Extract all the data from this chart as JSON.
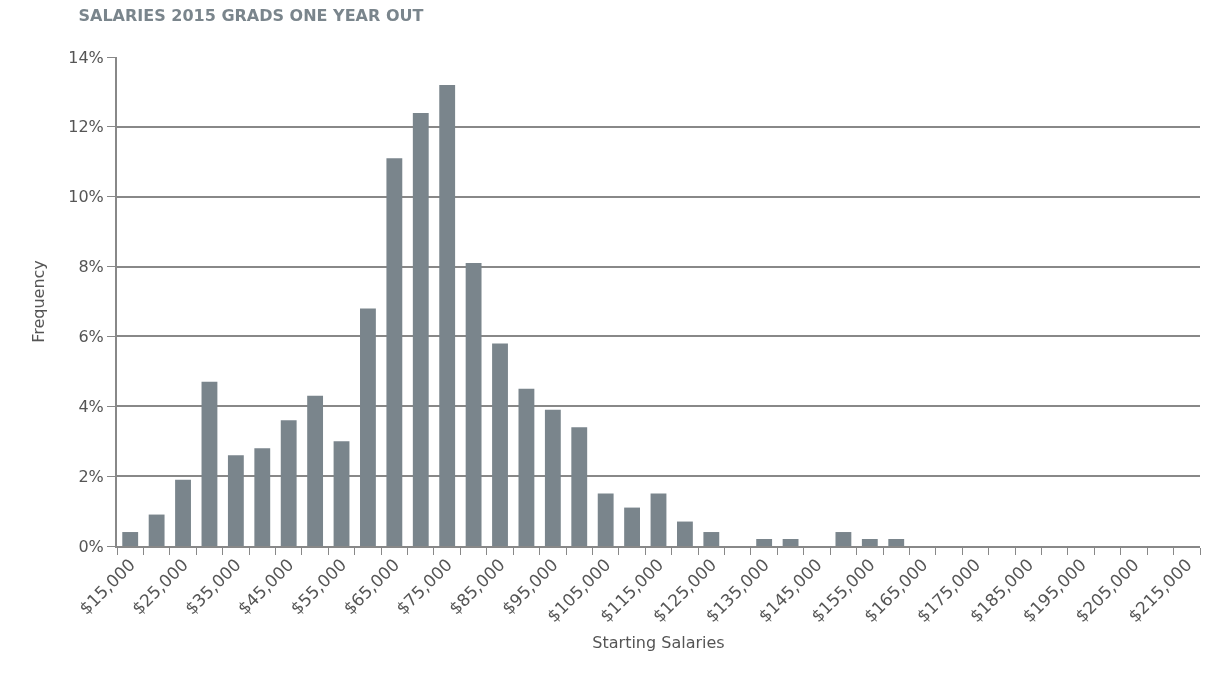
{
  "chart_data": {
    "type": "bar",
    "title": "SALARIES 2015 GRADS ONE YEAR OUT",
    "xlabel": "Starting Salaries",
    "ylabel": "Frequency",
    "categories": [
      "$15,000",
      null,
      "$25,000",
      null,
      "$35,000",
      null,
      "$45,000",
      null,
      "$55,000",
      null,
      "$65,000",
      null,
      "$75,000",
      null,
      "$85,000",
      null,
      "$95,000",
      null,
      "$105,000",
      null,
      "$115,000",
      null,
      "$125,000",
      null,
      "$135,000",
      null,
      "$145,000",
      null,
      "$155,000",
      null,
      "$165,000",
      null,
      "$175,000",
      null,
      "$185,000",
      null,
      "$195,000",
      null,
      "$205,000",
      null,
      "$215,000"
    ],
    "values": [
      0.4,
      0.9,
      1.9,
      4.7,
      2.6,
      2.8,
      3.6,
      4.3,
      3.0,
      6.8,
      11.1,
      12.4,
      13.2,
      8.1,
      5.8,
      4.5,
      3.9,
      3.4,
      1.5,
      1.1,
      1.5,
      0.7,
      0.4,
      0,
      0.2,
      0.2,
      0,
      0.4,
      0.2,
      0.2,
      0,
      0,
      0,
      0,
      0,
      0,
      0,
      0,
      0,
      0,
      0
    ],
    "color": "#7a858c",
    "ylim": [
      0,
      14
    ],
    "yticks": [
      {
        "value": 0,
        "label": "0%"
      },
      {
        "value": 2,
        "label": "2%"
      },
      {
        "value": 4,
        "label": "4%"
      },
      {
        "value": 6,
        "label": "6%"
      },
      {
        "value": 8,
        "label": "8%"
      },
      {
        "value": 10,
        "label": "10%"
      },
      {
        "value": 12,
        "label": "12%"
      },
      {
        "value": 14,
        "label": "14%"
      }
    ],
    "grid": "y"
  }
}
